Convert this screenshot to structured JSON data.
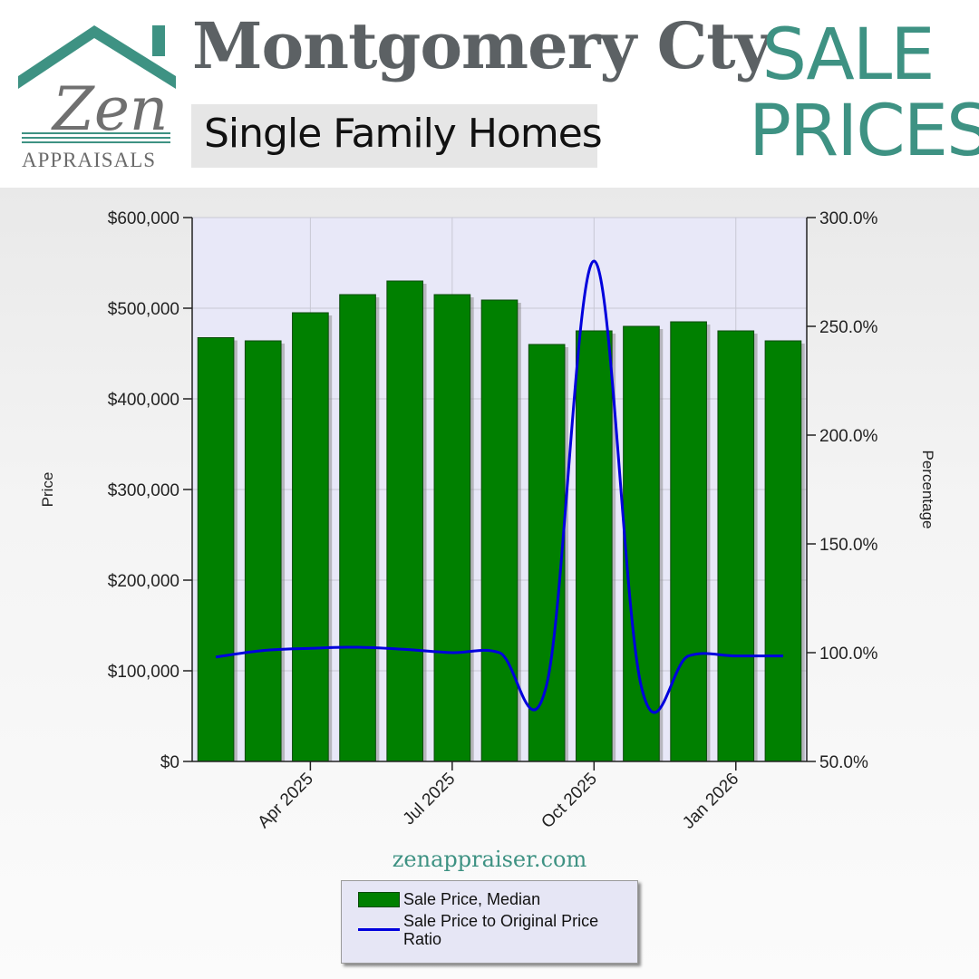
{
  "header": {
    "logo_word": "Zen",
    "logo_sub": "APPRAISALS",
    "title": "Montgomery Cty",
    "subtitle": "Single Family Homes",
    "badge_line1": "SALE",
    "badge_line2": "PRICES"
  },
  "footer": {
    "website": "zenappraiser.com"
  },
  "colors": {
    "brand_teal": "#3e9283",
    "bar_green": "#008000",
    "line_blue": "#0000dd",
    "plot_background": "#e8e8f8"
  },
  "chart_data": {
    "type": "bar",
    "xlabel": "",
    "ylabel": "Price",
    "y2label": "Percentage",
    "ylim": [
      0,
      600000
    ],
    "y2lim": [
      50,
      300
    ],
    "y_ticks": [
      "$0",
      "$100,000",
      "$200,000",
      "$300,000",
      "$400,000",
      "$500,000",
      "$600,000"
    ],
    "y2_ticks": [
      "50.0%",
      "100.0%",
      "150.0%",
      "200.0%",
      "250.0%",
      "300.0%"
    ],
    "x_tick_labels": [
      "Apr 2025",
      "Jul 2025",
      "Oct 2025",
      "Jan 2026"
    ],
    "categories": [
      "Feb 2025",
      "Mar 2025",
      "Apr 2025",
      "May 2025",
      "Jun 2025",
      "Jul 2025",
      "Aug 2025",
      "Sep 2025",
      "Oct 2025",
      "Nov 2025",
      "Dec 2025",
      "Jan 2026",
      "Feb 2026"
    ],
    "grid": true,
    "legend_position": "bottom",
    "series": [
      {
        "name": "Sale Price, Median",
        "type": "bar",
        "axis": "left",
        "values": [
          467500,
          464000,
          495000,
          515000,
          530000,
          515000,
          509000,
          460000,
          475000,
          480000,
          485000,
          475000,
          464000
        ]
      },
      {
        "name": "Sale Price to Original Price Ratio",
        "type": "line",
        "axis": "right",
        "values": [
          98,
          101,
          102,
          102.5,
          101.5,
          100,
          100,
          85.5,
          280,
          84.5,
          98.5,
          98.5,
          98.5
        ]
      }
    ]
  }
}
